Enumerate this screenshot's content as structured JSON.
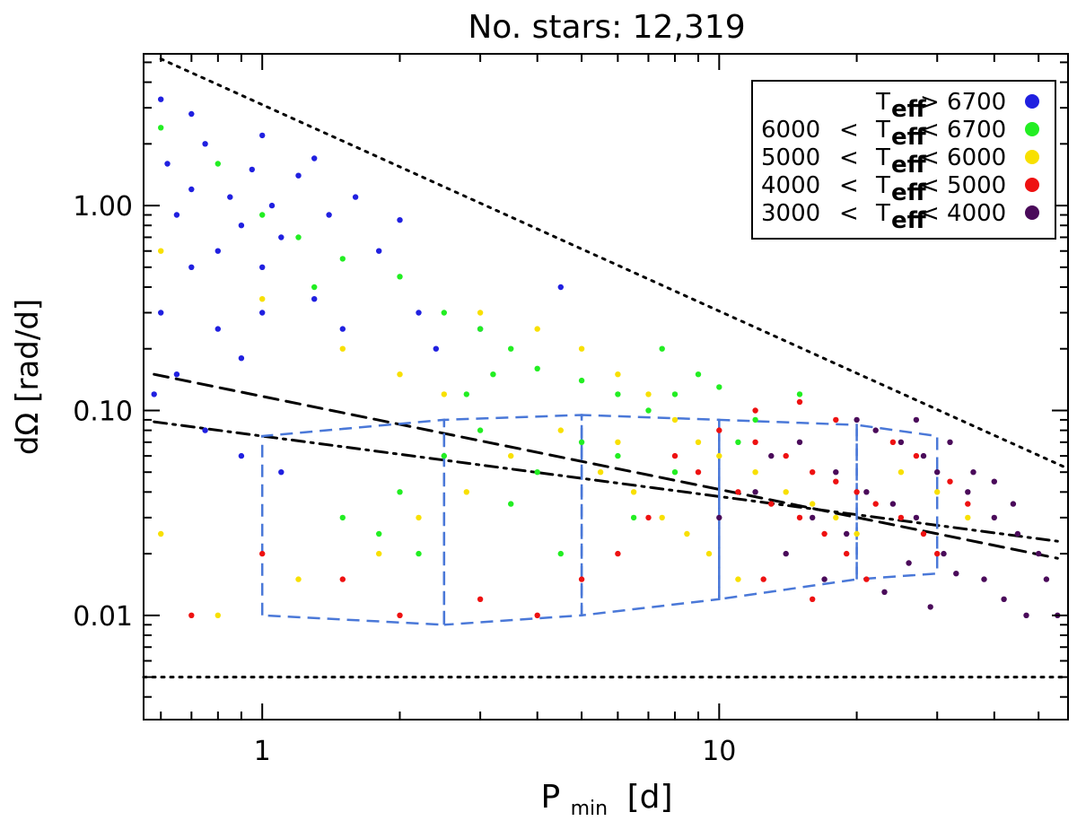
{
  "chart_data": {
    "type": "scatter",
    "title": "No. stars: 12,319",
    "xlabel": "P",
    "xlabel_sub": "min",
    "xlabel_unit": "[d]",
    "ylabel": "dΩ  [rad/d]",
    "xscale": "log",
    "yscale": "log",
    "xlim": [
      0.55,
      58
    ],
    "ylim": [
      0.0031,
      5.5
    ],
    "xticks": [
      {
        "value": 1,
        "label": "1"
      },
      {
        "value": 10,
        "label": "10"
      }
    ],
    "yticks": [
      {
        "value": 0.01,
        "label": "0.01"
      },
      {
        "value": 0.1,
        "label": "0.10"
      },
      {
        "value": 1.0,
        "label": "1.00"
      }
    ],
    "legend_position": "top-right",
    "legend": [
      {
        "pre": "",
        "mid": "",
        "post": "> 6700",
        "sub": "eff",
        "sym": "T",
        "color": "#2020e0"
      },
      {
        "pre": "6000",
        "mid": "<",
        "post": "< 6700",
        "sub": "eff",
        "sym": "T",
        "color": "#22ee22"
      },
      {
        "pre": "5000",
        "mid": "<",
        "post": "< 6000",
        "sub": "eff",
        "sym": "T",
        "color": "#f8e000"
      },
      {
        "pre": "4000",
        "mid": "<",
        "post": "< 5000",
        "sub": "eff",
        "sym": "T",
        "color": "#ee1111"
      },
      {
        "pre": "3000",
        "mid": "<",
        "post": "< 4000",
        "sub": "eff",
        "sym": "T",
        "color": "#4a0a5a"
      }
    ],
    "series": [
      {
        "name": "T_eff > 6700",
        "color": "#2020e0",
        "points": [
          [
            0.6,
            3.3
          ],
          [
            0.62,
            1.6
          ],
          [
            0.65,
            0.9
          ],
          [
            0.7,
            1.2
          ],
          [
            0.75,
            2.0
          ],
          [
            0.8,
            0.6
          ],
          [
            0.85,
            1.1
          ],
          [
            0.9,
            0.8
          ],
          [
            0.95,
            1.5
          ],
          [
            1.0,
            0.5
          ],
          [
            1.05,
            1.0
          ],
          [
            1.1,
            0.7
          ],
          [
            1.2,
            1.4
          ],
          [
            1.3,
            0.35
          ],
          [
            1.4,
            0.9
          ],
          [
            1.5,
            0.25
          ],
          [
            1.6,
            1.1
          ],
          [
            1.8,
            0.6
          ],
          [
            2.0,
            0.85
          ],
          [
            2.2,
            0.3
          ],
          [
            2.4,
            0.2
          ],
          [
            0.6,
            0.3
          ],
          [
            0.65,
            0.15
          ],
          [
            0.7,
            0.5
          ],
          [
            0.8,
            0.25
          ],
          [
            0.9,
            0.18
          ],
          [
            1.0,
            0.3
          ],
          [
            0.58,
            0.12
          ],
          [
            0.75,
            0.08
          ],
          [
            0.9,
            0.06
          ],
          [
            1.1,
            0.05
          ],
          [
            4.5,
            0.4
          ],
          [
            3.0,
            0.25
          ],
          [
            0.7,
            2.8
          ],
          [
            1.0,
            2.2
          ],
          [
            1.3,
            1.7
          ]
        ]
      },
      {
        "name": "6000 < T_eff < 6700",
        "color": "#22ee22",
        "points": [
          [
            0.6,
            2.4
          ],
          [
            0.8,
            1.6
          ],
          [
            1.0,
            0.9
          ],
          [
            1.2,
            0.7
          ],
          [
            1.5,
            0.55
          ],
          [
            2.0,
            0.45
          ],
          [
            2.5,
            0.3
          ],
          [
            3.0,
            0.25
          ],
          [
            3.5,
            0.2
          ],
          [
            4.0,
            0.16
          ],
          [
            5.0,
            0.14
          ],
          [
            6.0,
            0.12
          ],
          [
            7.0,
            0.1
          ],
          [
            8.0,
            0.12
          ],
          [
            9.0,
            0.15
          ],
          [
            10.0,
            0.13
          ],
          [
            12.0,
            0.09
          ],
          [
            3.0,
            0.08
          ],
          [
            2.5,
            0.06
          ],
          [
            2.0,
            0.04
          ],
          [
            1.5,
            0.03
          ],
          [
            4.0,
            0.05
          ],
          [
            5.0,
            0.07
          ],
          [
            6.0,
            0.06
          ],
          [
            3.5,
            0.035
          ],
          [
            2.2,
            0.02
          ],
          [
            1.8,
            0.025
          ],
          [
            4.5,
            0.02
          ],
          [
            6.5,
            0.03
          ],
          [
            8.0,
            0.05
          ],
          [
            11.0,
            0.07
          ],
          [
            15.0,
            0.12
          ],
          [
            2.8,
            0.12
          ],
          [
            3.2,
            0.15
          ],
          [
            1.3,
            0.4
          ],
          [
            7.5,
            0.2
          ]
        ]
      },
      {
        "name": "5000 < T_eff < 6000",
        "color": "#f8e000",
        "points": [
          [
            0.6,
            0.6
          ],
          [
            1.0,
            0.35
          ],
          [
            1.5,
            0.2
          ],
          [
            2.0,
            0.15
          ],
          [
            2.5,
            0.12
          ],
          [
            3.0,
            0.3
          ],
          [
            4.0,
            0.25
          ],
          [
            5.0,
            0.2
          ],
          [
            6.0,
            0.15
          ],
          [
            7.0,
            0.12
          ],
          [
            8.0,
            0.09
          ],
          [
            9.0,
            0.07
          ],
          [
            10.0,
            0.06
          ],
          [
            12.0,
            0.05
          ],
          [
            14.0,
            0.04
          ],
          [
            16.0,
            0.035
          ],
          [
            18.0,
            0.03
          ],
          [
            20.0,
            0.025
          ],
          [
            5.5,
            0.05
          ],
          [
            6.5,
            0.04
          ],
          [
            7.5,
            0.03
          ],
          [
            8.5,
            0.025
          ],
          [
            9.5,
            0.02
          ],
          [
            11.0,
            0.015
          ],
          [
            4.5,
            0.08
          ],
          [
            3.5,
            0.06
          ],
          [
            2.8,
            0.04
          ],
          [
            2.2,
            0.03
          ],
          [
            1.8,
            0.02
          ],
          [
            1.2,
            0.015
          ],
          [
            0.8,
            0.01
          ],
          [
            0.6,
            0.025
          ],
          [
            25.0,
            0.05
          ],
          [
            30.0,
            0.04
          ],
          [
            35.0,
            0.03
          ],
          [
            6.0,
            0.07
          ]
        ]
      },
      {
        "name": "4000 < T_eff < 5000",
        "color": "#ee1111",
        "points": [
          [
            10.0,
            0.08
          ],
          [
            12.0,
            0.07
          ],
          [
            14.0,
            0.06
          ],
          [
            16.0,
            0.05
          ],
          [
            18.0,
            0.045
          ],
          [
            20.0,
            0.04
          ],
          [
            22.0,
            0.035
          ],
          [
            25.0,
            0.03
          ],
          [
            28.0,
            0.025
          ],
          [
            30.0,
            0.02
          ],
          [
            11.0,
            0.04
          ],
          [
            13.0,
            0.035
          ],
          [
            15.0,
            0.03
          ],
          [
            17.0,
            0.025
          ],
          [
            19.0,
            0.02
          ],
          [
            21.0,
            0.015
          ],
          [
            9.0,
            0.05
          ],
          [
            8.0,
            0.06
          ],
          [
            7.0,
            0.03
          ],
          [
            6.0,
            0.02
          ],
          [
            5.0,
            0.015
          ],
          [
            4.0,
            0.01
          ],
          [
            3.0,
            0.012
          ],
          [
            2.0,
            0.01
          ],
          [
            1.5,
            0.015
          ],
          [
            1.0,
            0.02
          ],
          [
            0.7,
            0.01
          ],
          [
            12.0,
            0.1
          ],
          [
            15.0,
            0.11
          ],
          [
            18.0,
            0.09
          ],
          [
            24.0,
            0.07
          ],
          [
            27.0,
            0.06
          ],
          [
            32.0,
            0.045
          ],
          [
            35.0,
            0.035
          ],
          [
            12.5,
            0.015
          ],
          [
            16.0,
            0.012
          ]
        ]
      },
      {
        "name": "3000 < T_eff < 4000",
        "color": "#4a0a5a",
        "points": [
          [
            20.0,
            0.09
          ],
          [
            22.0,
            0.08
          ],
          [
            25.0,
            0.07
          ],
          [
            28.0,
            0.06
          ],
          [
            30.0,
            0.05
          ],
          [
            35.0,
            0.04
          ],
          [
            40.0,
            0.03
          ],
          [
            45.0,
            0.025
          ],
          [
            50.0,
            0.02
          ],
          [
            18.0,
            0.05
          ],
          [
            21.0,
            0.04
          ],
          [
            24.0,
            0.035
          ],
          [
            27.0,
            0.03
          ],
          [
            31.0,
            0.02
          ],
          [
            38.0,
            0.015
          ],
          [
            42.0,
            0.012
          ],
          [
            47.0,
            0.01
          ],
          [
            15.0,
            0.07
          ],
          [
            13.0,
            0.06
          ],
          [
            16.0,
            0.03
          ],
          [
            19.0,
            0.025
          ],
          [
            26.0,
            0.018
          ],
          [
            33.0,
            0.016
          ],
          [
            29.0,
            0.011
          ],
          [
            23.0,
            0.013
          ],
          [
            17.0,
            0.015
          ],
          [
            36.0,
            0.05
          ],
          [
            40.0,
            0.045
          ],
          [
            44.0,
            0.035
          ],
          [
            12.0,
            0.04
          ],
          [
            10.0,
            0.03
          ],
          [
            14.0,
            0.02
          ],
          [
            32.0,
            0.07
          ],
          [
            27.0,
            0.09
          ],
          [
            52.0,
            0.015
          ],
          [
            55.0,
            0.01
          ]
        ]
      }
    ],
    "reference_lines": [
      {
        "style": "dotted",
        "points": [
          [
            0.6,
            5.2
          ],
          [
            58,
            0.052
          ]
        ]
      },
      {
        "style": "dotted",
        "points": [
          [
            0.55,
            0.005
          ],
          [
            58,
            0.005
          ]
        ]
      },
      {
        "style": "dashed",
        "points": [
          [
            0.58,
            0.15
          ],
          [
            55,
            0.019
          ]
        ]
      },
      {
        "style": "dashdot",
        "points": [
          [
            0.58,
            0.088
          ],
          [
            55,
            0.023
          ]
        ]
      }
    ],
    "bins": [
      {
        "points": [
          [
            1,
            0.01
          ],
          [
            1,
            0.075
          ],
          [
            2.5,
            0.09
          ],
          [
            2.5,
            0.009
          ],
          [
            1,
            0.01
          ]
        ]
      },
      {
        "points": [
          [
            2.5,
            0.009
          ],
          [
            2.5,
            0.09
          ],
          [
            5,
            0.095
          ],
          [
            5,
            0.01
          ],
          [
            2.5,
            0.009
          ]
        ]
      },
      {
        "points": [
          [
            5,
            0.01
          ],
          [
            5,
            0.095
          ],
          [
            10,
            0.09
          ],
          [
            10,
            0.012
          ],
          [
            5,
            0.01
          ]
        ]
      },
      {
        "points": [
          [
            10,
            0.012
          ],
          [
            10,
            0.09
          ],
          [
            20,
            0.085
          ],
          [
            20,
            0.015
          ],
          [
            10,
            0.012
          ]
        ]
      },
      {
        "points": [
          [
            20,
            0.015
          ],
          [
            20,
            0.085
          ],
          [
            30,
            0.075
          ],
          [
            30,
            0.016
          ],
          [
            20,
            0.015
          ]
        ]
      }
    ]
  }
}
